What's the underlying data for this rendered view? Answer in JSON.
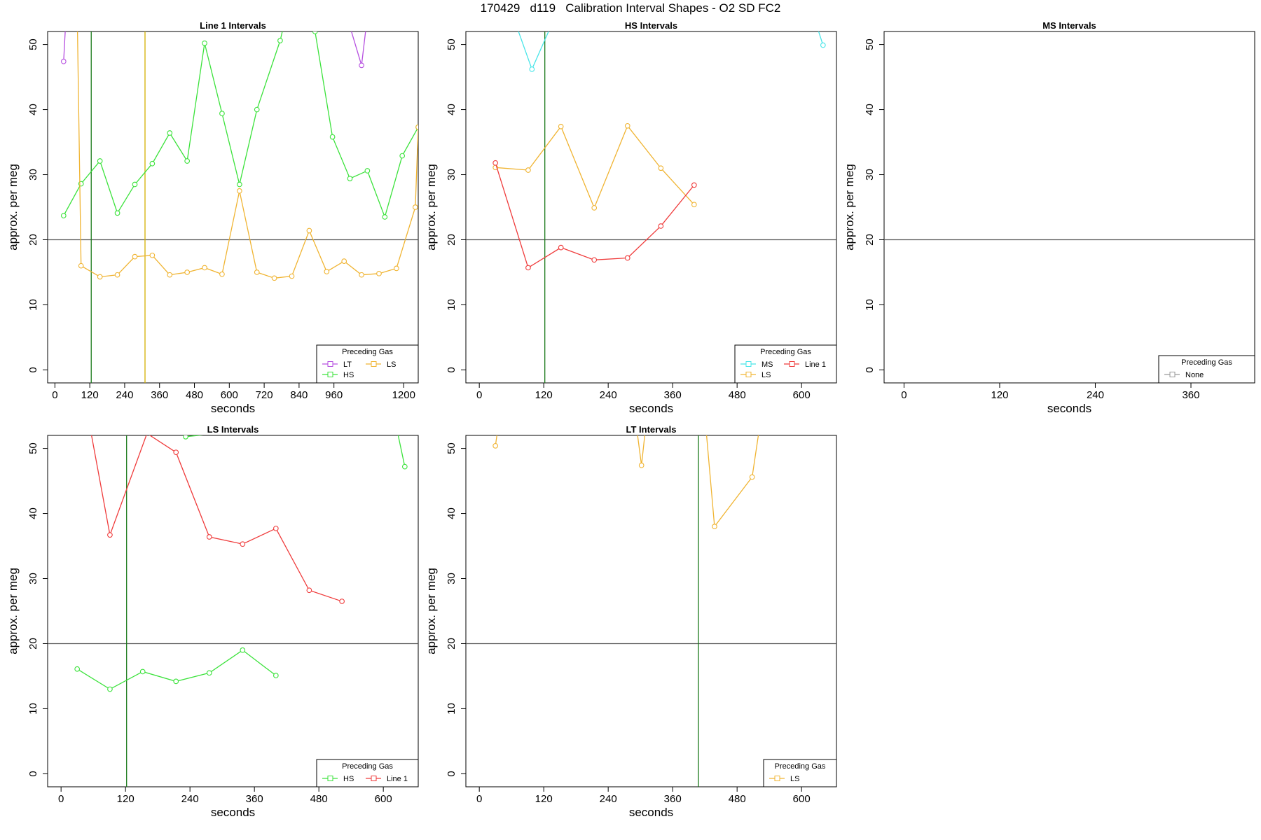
{
  "title": "170429   d119   Calibration Interval Shapes - O2 SD FC2",
  "colors": {
    "LT": "#b64fe0",
    "HS": "#3be23b",
    "LS": "#f0b432",
    "MS": "#47e5e8",
    "Line 1": "#ef3b3b",
    "None": "#999999",
    "vline_green": "#1a7a1a",
    "vline_gold": "#d4b000",
    "hline": "#555555"
  },
  "chart_data": [
    {
      "type": "line",
      "title": "Line 1 Intervals",
      "xlabel": "seconds",
      "ylabel": "approx. per meg",
      "xlim": [
        -25,
        1250
      ],
      "ylim": [
        -2,
        52
      ],
      "xticks": [
        0,
        120,
        240,
        360,
        480,
        600,
        720,
        840,
        960,
        1200
      ],
      "yticks": [
        0,
        10,
        20,
        30,
        40,
        50
      ],
      "hline": 20,
      "vlines": [
        {
          "x": 125,
          "color": "vline_green"
        },
        {
          "x": 310,
          "color": "vline_gold"
        }
      ],
      "legend": {
        "title": "Preceding Gas",
        "position": "bottom-right",
        "columns": 2,
        "entries": [
          "LT",
          "LS",
          "HS"
        ]
      },
      "series": [
        {
          "name": "LT",
          "x": [
            30,
            45,
            1000,
            1055,
            1090
          ],
          "y": [
            47.4,
            60,
            55,
            46.8,
            60
          ]
        },
        {
          "name": "HS",
          "x": [
            30,
            90,
            155,
            215,
            275,
            335,
            395,
            455,
            515,
            575,
            635,
            695,
            775,
            835,
            895,
            955,
            1015,
            1075,
            1135,
            1195,
            1250
          ],
          "y": [
            23.7,
            28.6,
            32.1,
            24.1,
            28.5,
            31.7,
            36.4,
            32.1,
            50.2,
            39.4,
            28.5,
            40,
            50.6,
            62,
            52,
            35.8,
            29.4,
            30.6,
            23.5,
            32.9,
            37.3
          ]
        },
        {
          "name": "LS",
          "x": [
            75,
            90,
            155,
            215,
            275,
            335,
            395,
            455,
            515,
            575,
            635,
            695,
            755,
            815,
            875,
            935,
            995,
            1055,
            1115,
            1175,
            1240,
            1250
          ],
          "y": [
            60,
            16.0,
            14.3,
            14.6,
            17.4,
            17.6,
            14.6,
            15.0,
            15.7,
            14.7,
            27.5,
            15.0,
            14.1,
            14.4,
            21.4,
            15.1,
            16.7,
            14.6,
            14.8,
            15.6,
            25,
            37.3
          ]
        }
      ]
    },
    {
      "type": "line",
      "title": "HS Intervals",
      "xlabel": "seconds",
      "ylabel": "approx. per meg",
      "xlim": [
        -25,
        665
      ],
      "ylim": [
        -2,
        52
      ],
      "xticks": [
        0,
        120,
        240,
        360,
        480,
        600
      ],
      "yticks": [
        0,
        10,
        20,
        30,
        40,
        50
      ],
      "hline": 20,
      "vlines": [
        {
          "x": 122,
          "color": "vline_green"
        }
      ],
      "legend": {
        "title": "Preceding Gas",
        "position": "bottom-right",
        "columns": 2,
        "entries": [
          "MS",
          "Line 1",
          "LS"
        ]
      },
      "series": [
        {
          "name": "MS",
          "x": [
            60,
            98,
            145,
            620,
            640
          ],
          "y": [
            55,
            46.2,
            55,
            55,
            49.9
          ]
        },
        {
          "name": "LS",
          "x": [
            30,
            91,
            152,
            214,
            276,
            338,
            400
          ],
          "y": [
            31.1,
            30.7,
            37.4,
            24.9,
            37.5,
            31.0,
            25.4
          ]
        },
        {
          "name": "Line 1",
          "x": [
            30,
            91,
            152,
            214,
            276,
            338,
            400
          ],
          "y": [
            31.8,
            15.7,
            18.8,
            16.9,
            17.2,
            22.1,
            28.4
          ]
        }
      ]
    },
    {
      "type": "line",
      "title": "MS Intervals",
      "xlabel": "seconds",
      "ylabel": "approx. per meg",
      "xlim": [
        -25,
        440
      ],
      "ylim": [
        -2,
        52
      ],
      "xticks": [
        0,
        120,
        240,
        360
      ],
      "yticks": [
        0,
        10,
        20,
        30,
        40,
        50
      ],
      "hline": 20,
      "vlines": [],
      "legend": {
        "title": "Preceding Gas",
        "position": "bottom-right",
        "columns": 1,
        "entries": [
          "None"
        ]
      },
      "series": []
    },
    {
      "type": "line",
      "title": "LS Intervals",
      "xlabel": "seconds",
      "ylabel": "approx. per meg",
      "xlim": [
        -25,
        665
      ],
      "ylim": [
        -2,
        52
      ],
      "xticks": [
        0,
        120,
        240,
        360,
        480,
        600
      ],
      "yticks": [
        0,
        10,
        20,
        30,
        40,
        50
      ],
      "hline": 20,
      "vlines": [
        {
          "x": 122,
          "color": "vline_green"
        }
      ],
      "legend": {
        "title": "Preceding Gas",
        "position": "bottom-right",
        "columns": 2,
        "entries": [
          "HS",
          "Line 1"
        ]
      },
      "series": [
        {
          "name": "HS",
          "x": [
            30,
            91,
            152,
            214,
            276,
            338,
            400
          ],
          "y": [
            16.1,
            13.0,
            15.7,
            14.2,
            15.5,
            19.0,
            15.1
          ]
        },
        {
          "name": "HS",
          "x": [
            215,
            232,
            620,
            640
          ],
          "y": [
            55,
            51.8,
            55,
            47.2
          ]
        },
        {
          "name": "Line 1",
          "x": [
            50,
            91,
            160,
            214,
            276,
            338,
            400,
            462,
            523
          ],
          "y": [
            55,
            36.7,
            52.3,
            49.4,
            36.4,
            35.3,
            37.7,
            28.2,
            26.5
          ]
        }
      ]
    },
    {
      "type": "line",
      "title": "LT Intervals",
      "xlabel": "seconds",
      "ylabel": "approx. per meg",
      "xlim": [
        -25,
        665
      ],
      "ylim": [
        -2,
        52
      ],
      "xticks": [
        0,
        120,
        240,
        360,
        480,
        600
      ],
      "yticks": [
        0,
        10,
        20,
        30,
        40,
        50
      ],
      "hline": 20,
      "vlines": [
        {
          "x": 408,
          "color": "vline_green"
        }
      ],
      "legend": {
        "title": "Preceding Gas",
        "position": "bottom-right",
        "columns": 1,
        "entries": [
          "LS"
        ]
      },
      "series": [
        {
          "name": "LS",
          "x": [
            30,
            38
          ],
          "y": [
            50.4,
            55
          ]
        },
        {
          "name": "LS",
          "x": [
            290,
            302,
            312
          ],
          "y": [
            55,
            47.4,
            55
          ]
        },
        {
          "name": "LS",
          "x": [
            420,
            438,
            508,
            525
          ],
          "y": [
            55,
            38.0,
            45.6,
            55
          ]
        }
      ]
    }
  ]
}
